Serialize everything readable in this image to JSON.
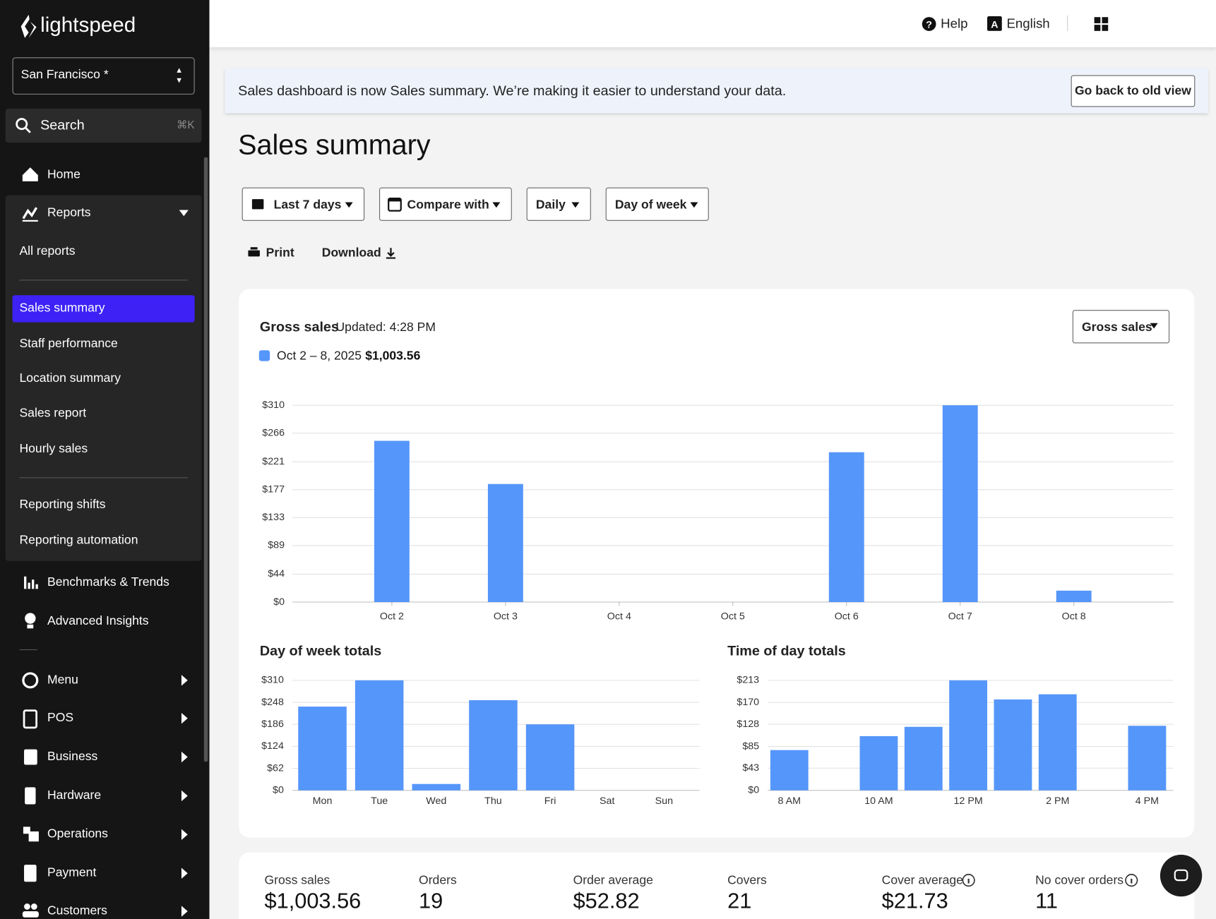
{
  "sidebar": {
    "brand": "lightspeed",
    "location": "San Francisco *",
    "search": "Search",
    "shortcut": "⌘K",
    "nav": [
      "Home",
      "Reports",
      "All reports",
      "Sales summary",
      "Staff performance",
      "Location summary",
      "Sales report",
      "Hourly sales",
      "Reporting shifts",
      "Reporting automation",
      "Benchmarks & Trends",
      "Advanced Insights",
      "Menu",
      "POS",
      "Business",
      "Hardware",
      "Operations",
      "Payment",
      "Customers"
    ]
  },
  "topbar": {
    "help": "Help",
    "language": "English"
  },
  "banner": {
    "text": "Sales dashboard is now Sales summary. We’re making it easier to understand your data.",
    "button": "Go back to old view"
  },
  "page": {
    "title": "Sales summary",
    "filters": [
      "Last 7 days",
      "Compare with",
      "Daily",
      "Day of week"
    ],
    "actions": [
      "Print",
      "Download"
    ],
    "metric_select": "Gross sales"
  },
  "chart_data": [
    {
      "type": "bar",
      "title": "Gross sales",
      "subtitle": "Updated: 4:28 PM",
      "legend_total": "$1,003.56",
      "categories": [
        "Oct 2",
        "Oct 3",
        "Oct 4",
        "Oct 5",
        "Oct 6",
        "Oct 7",
        "Oct 8"
      ],
      "series": [
        {
          "name": "Oct 2 – 8, 2025",
          "color": "#5596fa",
          "values": [
            254,
            186,
            0,
            0,
            236,
            310,
            18
          ]
        }
      ],
      "ylim": [
        0,
        310
      ],
      "yticks": [
        {
          "value": 0,
          "label": "$0"
        },
        {
          "value": 44,
          "label": "$44"
        },
        {
          "value": 89,
          "label": "$89"
        },
        {
          "value": 133,
          "label": "$133"
        },
        {
          "value": 177,
          "label": "$177"
        },
        {
          "value": 221,
          "label": "$221"
        },
        {
          "value": 266,
          "label": "$266"
        },
        {
          "value": 310,
          "label": "$310"
        }
      ],
      "grid": true
    },
    {
      "type": "bar",
      "title": "Day of week totals",
      "categories": [
        "Mon",
        "Tue",
        "Wed",
        "Thu",
        "Fri",
        "Sat",
        "Sun"
      ],
      "series": [
        {
          "name": "Oct 2 – 8, 2025",
          "color": "#5596fa",
          "values": [
            236,
            310,
            18,
            254,
            186,
            0,
            0
          ]
        }
      ],
      "ylim": [
        0,
        310
      ],
      "yticks": [
        {
          "value": 0,
          "label": "$0"
        },
        {
          "value": 62,
          "label": "$62"
        },
        {
          "value": 124,
          "label": "$124"
        },
        {
          "value": 186,
          "label": "$186"
        },
        {
          "value": 248,
          "label": "$248"
        },
        {
          "value": 310,
          "label": "$310"
        }
      ],
      "grid": true
    },
    {
      "type": "bar",
      "title": "Time of day totals",
      "categories": [
        "8 AM",
        null,
        "10 AM",
        null,
        "12 PM",
        null,
        "2 PM",
        null,
        "4 PM"
      ],
      "series": [
        {
          "name": "Oct 2 – 8, 2025",
          "color": "#5596fa",
          "values": [
            78,
            0,
            105,
            123,
            213,
            176,
            186,
            0,
            125
          ]
        }
      ],
      "ylim": [
        0,
        213
      ],
      "yticks": [
        {
          "value": 0,
          "label": "$0"
        },
        {
          "value": 43,
          "label": "$43"
        },
        {
          "value": 85,
          "label": "$85"
        },
        {
          "value": 128,
          "label": "$128"
        },
        {
          "value": 170,
          "label": "$170"
        },
        {
          "value": 213,
          "label": "$213"
        }
      ],
      "grid": true
    }
  ],
  "metrics": [
    {
      "label": "Gross sales",
      "value": "$1,003.56"
    },
    {
      "label": "Orders",
      "value": "19"
    },
    {
      "label": "Order average",
      "value": "$52.82"
    },
    {
      "label": "Covers",
      "value": "21"
    },
    {
      "label": "Cover average",
      "value": "$21.73"
    },
    {
      "label": "No cover orders",
      "value": "11"
    }
  ]
}
